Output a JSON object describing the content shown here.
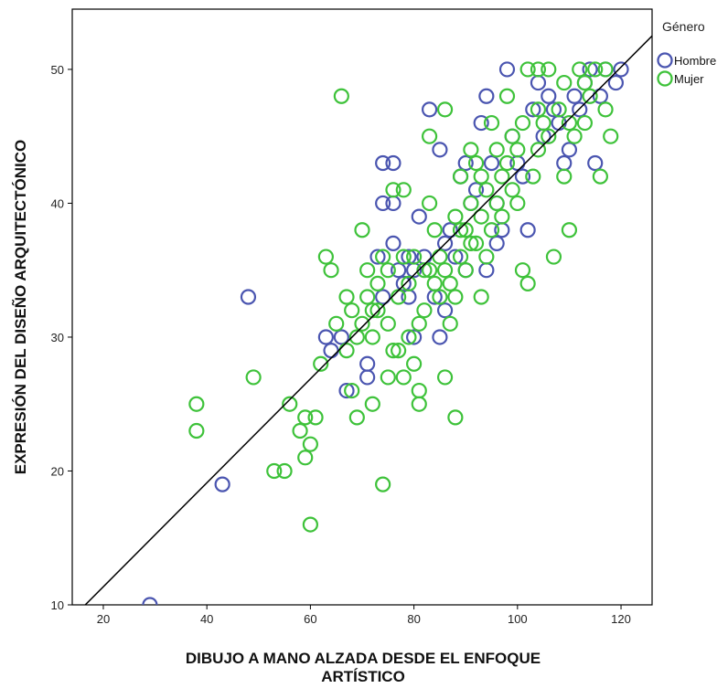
{
  "chart_data": {
    "type": "scatter",
    "xlabel": "DIBUJO A MANO ALZADA DESDE EL ENFOQUE ARTÍSTICO",
    "ylabel": "EXPRESIÓN DEL DISEÑO ARQUITECTÓNICO",
    "xlim": [
      14,
      126
    ],
    "ylim": [
      10,
      54.5
    ],
    "x_ticks": [
      20,
      40,
      60,
      80,
      100,
      120
    ],
    "y_ticks": [
      10,
      20,
      30,
      40,
      50
    ],
    "grid": false,
    "legend": {
      "title": "Género",
      "placement": "right"
    },
    "fit_line": {
      "x": [
        16,
        126
      ],
      "y": [
        9.8,
        52.5
      ],
      "color": "#000000"
    },
    "series": [
      {
        "name": "Hombre",
        "color": "#4a55b0",
        "points": [
          [
            29,
            10
          ],
          [
            43,
            19
          ],
          [
            48,
            33
          ],
          [
            63,
            30
          ],
          [
            64,
            29
          ],
          [
            66,
            30
          ],
          [
            67,
            26
          ],
          [
            71,
            28
          ],
          [
            71,
            27
          ],
          [
            73,
            36
          ],
          [
            74,
            43
          ],
          [
            76,
            43
          ],
          [
            74,
            40
          ],
          [
            76,
            40
          ],
          [
            76,
            37
          ],
          [
            77,
            35
          ],
          [
            78,
            34
          ],
          [
            79,
            36
          ],
          [
            80,
            35
          ],
          [
            80,
            30
          ],
          [
            81,
            39
          ],
          [
            82,
            36
          ],
          [
            83,
            47
          ],
          [
            84,
            33
          ],
          [
            85,
            44
          ],
          [
            85,
            30
          ],
          [
            86,
            37
          ],
          [
            87,
            38
          ],
          [
            88,
            36
          ],
          [
            89,
            42
          ],
          [
            90,
            43
          ],
          [
            91,
            40
          ],
          [
            92,
            41
          ],
          [
            93,
            46
          ],
          [
            94,
            48
          ],
          [
            95,
            43
          ],
          [
            96,
            40
          ],
          [
            97,
            38
          ],
          [
            98,
            50
          ],
          [
            99,
            45
          ],
          [
            100,
            43
          ],
          [
            101,
            42
          ],
          [
            102,
            38
          ],
          [
            103,
            47
          ],
          [
            104,
            49
          ],
          [
            105,
            45
          ],
          [
            106,
            48
          ],
          [
            107,
            47
          ],
          [
            108,
            46
          ],
          [
            109,
            43
          ],
          [
            110,
            44
          ],
          [
            111,
            48
          ],
          [
            112,
            47
          ],
          [
            113,
            49
          ],
          [
            114,
            50
          ],
          [
            115,
            43
          ],
          [
            116,
            48
          ],
          [
            117,
            50
          ],
          [
            119,
            49
          ],
          [
            120,
            50
          ],
          [
            74,
            33
          ],
          [
            79,
            33
          ],
          [
            86,
            32
          ],
          [
            90,
            35
          ],
          [
            94,
            35
          ],
          [
            96,
            37
          ]
        ]
      },
      {
        "name": "Mujer",
        "color": "#3ec23a",
        "points": [
          [
            38,
            25
          ],
          [
            38,
            23
          ],
          [
            49,
            27
          ],
          [
            53,
            20
          ],
          [
            55,
            20
          ],
          [
            56,
            25
          ],
          [
            58,
            23
          ],
          [
            59,
            21
          ],
          [
            59,
            24
          ],
          [
            60,
            22
          ],
          [
            60,
            16
          ],
          [
            61,
            24
          ],
          [
            62,
            28
          ],
          [
            63,
            36
          ],
          [
            64,
            35
          ],
          [
            65,
            31
          ],
          [
            66,
            48
          ],
          [
            67,
            33
          ],
          [
            67,
            29
          ],
          [
            68,
            32
          ],
          [
            68,
            26
          ],
          [
            69,
            24
          ],
          [
            69,
            30
          ],
          [
            70,
            38
          ],
          [
            70,
            31
          ],
          [
            71,
            35
          ],
          [
            71,
            33
          ],
          [
            72,
            25
          ],
          [
            72,
            30
          ],
          [
            73,
            34
          ],
          [
            73,
            32
          ],
          [
            74,
            36
          ],
          [
            74,
            19
          ],
          [
            75,
            35
          ],
          [
            75,
            27
          ],
          [
            75,
            31
          ],
          [
            76,
            41
          ],
          [
            77,
            33
          ],
          [
            77,
            29
          ],
          [
            78,
            41
          ],
          [
            78,
            27
          ],
          [
            79,
            34
          ],
          [
            79,
            30
          ],
          [
            80,
            36
          ],
          [
            80,
            28
          ],
          [
            81,
            26
          ],
          [
            81,
            25
          ],
          [
            82,
            35
          ],
          [
            82,
            32
          ],
          [
            83,
            40
          ],
          [
            83,
            45
          ],
          [
            84,
            38
          ],
          [
            84,
            34
          ],
          [
            85,
            36
          ],
          [
            85,
            33
          ],
          [
            86,
            47
          ],
          [
            86,
            27
          ],
          [
            87,
            34
          ],
          [
            87,
            31
          ],
          [
            88,
            39
          ],
          [
            88,
            24
          ],
          [
            89,
            42
          ],
          [
            89,
            36
          ],
          [
            90,
            38
          ],
          [
            90,
            35
          ],
          [
            91,
            44
          ],
          [
            91,
            40
          ],
          [
            92,
            43
          ],
          [
            92,
            37
          ],
          [
            93,
            33
          ],
          [
            93,
            39
          ],
          [
            94,
            41
          ],
          [
            94,
            36
          ],
          [
            95,
            46
          ],
          [
            95,
            38
          ],
          [
            96,
            44
          ],
          [
            96,
            40
          ],
          [
            97,
            42
          ],
          [
            97,
            39
          ],
          [
            98,
            48
          ],
          [
            98,
            43
          ],
          [
            99,
            41
          ],
          [
            100,
            44
          ],
          [
            100,
            40
          ],
          [
            101,
            35
          ],
          [
            101,
            46
          ],
          [
            102,
            34
          ],
          [
            102,
            50
          ],
          [
            103,
            42
          ],
          [
            104,
            44
          ],
          [
            104,
            50
          ],
          [
            105,
            46
          ],
          [
            106,
            50
          ],
          [
            106,
            45
          ],
          [
            107,
            36
          ],
          [
            108,
            47
          ],
          [
            109,
            42
          ],
          [
            110,
            38
          ],
          [
            110,
            46
          ],
          [
            111,
            45
          ],
          [
            112,
            50
          ],
          [
            113,
            49
          ],
          [
            114,
            48
          ],
          [
            115,
            50
          ],
          [
            116,
            42
          ],
          [
            117,
            50
          ],
          [
            118,
            45
          ],
          [
            72,
            32
          ],
          [
            78,
            36
          ],
          [
            83,
            35
          ],
          [
            88,
            33
          ],
          [
            91,
            37
          ],
          [
            93,
            42
          ],
          [
            99,
            45
          ],
          [
            104,
            47
          ],
          [
            109,
            49
          ],
          [
            113,
            46
          ],
          [
            117,
            47
          ],
          [
            76,
            29
          ],
          [
            81,
            31
          ],
          [
            86,
            35
          ],
          [
            89,
            38
          ]
        ]
      }
    ]
  }
}
